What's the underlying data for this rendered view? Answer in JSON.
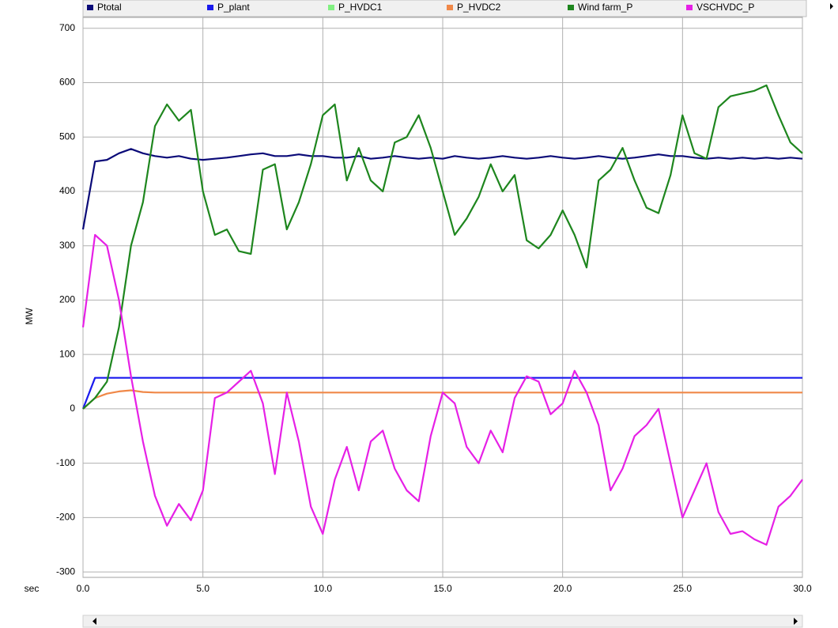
{
  "chart_data": {
    "type": "line",
    "x_label": "sec",
    "y_label": "MW",
    "xlim": [
      0,
      30
    ],
    "ylim": [
      -310,
      720
    ],
    "xticks": [
      {
        "value": 0,
        "label": "0.0"
      },
      {
        "value": 5,
        "label": "5.0"
      },
      {
        "value": 10,
        "label": "10.0"
      },
      {
        "value": 15,
        "label": "15.0"
      },
      {
        "value": 20,
        "label": "20.0"
      },
      {
        "value": 25,
        "label": "25.0"
      },
      {
        "value": 30,
        "label": "30.0"
      }
    ],
    "yticks": [
      -300,
      -200,
      -100,
      0,
      100,
      200,
      300,
      400,
      500,
      600,
      700
    ],
    "grid": true,
    "x": [
      0,
      0.5,
      1,
      1.5,
      2,
      2.5,
      3,
      3.5,
      4,
      4.5,
      5,
      5.5,
      6,
      6.5,
      7,
      7.5,
      8,
      8.5,
      9,
      9.5,
      10,
      10.5,
      11,
      11.5,
      12,
      12.5,
      13,
      13.5,
      14,
      14.5,
      15,
      15.5,
      16,
      16.5,
      17,
      17.5,
      18,
      18.5,
      19,
      19.5,
      20,
      20.5,
      21,
      21.5,
      22,
      22.5,
      23,
      23.5,
      24,
      24.5,
      25,
      25.5,
      26,
      26.5,
      27,
      27.5,
      28,
      28.5,
      29,
      29.5,
      30
    ],
    "series": [
      {
        "name": "Ptotal",
        "color": "#0a0a78",
        "values": [
          330,
          455,
          458,
          470,
          478,
          470,
          465,
          462,
          465,
          460,
          458,
          460,
          462,
          465,
          468,
          470,
          465,
          465,
          468,
          465,
          465,
          462,
          462,
          465,
          460,
          462,
          465,
          462,
          460,
          462,
          460,
          465,
          462,
          460,
          462,
          465,
          462,
          460,
          462,
          465,
          462,
          460,
          462,
          465,
          462,
          460,
          462,
          465,
          468,
          465,
          465,
          462,
          460,
          462,
          460,
          462,
          460,
          462,
          460,
          462,
          460
        ]
      },
      {
        "name": "P_plant",
        "color": "#1a1aee",
        "values": [
          0,
          57,
          57,
          57,
          57,
          57,
          57,
          57,
          57,
          57,
          57,
          57,
          57,
          57,
          57,
          57,
          57,
          57,
          57,
          57,
          57,
          57,
          57,
          57,
          57,
          57,
          57,
          57,
          57,
          57,
          57,
          57,
          57,
          57,
          57,
          57,
          57,
          57,
          57,
          57,
          57,
          57,
          57,
          57,
          57,
          57,
          57,
          57,
          57,
          57,
          57,
          57,
          57,
          57,
          57,
          57,
          57,
          57,
          57,
          57,
          57
        ]
      },
      {
        "name": "P_HVDC1",
        "color": "#80f080",
        "values": [
          null,
          null,
          null,
          null,
          null,
          null,
          null,
          null,
          null,
          null,
          null,
          null,
          null,
          null,
          null,
          null,
          null,
          null,
          null,
          null,
          null,
          null,
          null,
          null,
          null,
          null,
          null,
          null,
          null,
          null,
          null,
          null,
          null,
          null,
          null,
          null,
          null,
          null,
          null,
          null,
          null,
          null,
          null,
          null,
          null,
          null,
          null,
          null,
          null,
          null,
          null,
          null,
          null,
          null,
          null,
          null,
          null,
          null,
          null,
          null,
          null
        ]
      },
      {
        "name": "P_HVDC2",
        "color": "#f08848",
        "values": [
          0,
          20,
          28,
          32,
          34,
          31,
          30,
          30,
          30,
          30,
          30,
          30,
          30,
          30,
          30,
          30,
          30,
          30,
          30,
          30,
          30,
          30,
          30,
          30,
          30,
          30,
          30,
          30,
          30,
          30,
          30,
          30,
          30,
          30,
          30,
          30,
          30,
          30,
          30,
          30,
          30,
          30,
          30,
          30,
          30,
          30,
          30,
          30,
          30,
          30,
          30,
          30,
          30,
          30,
          30,
          30,
          30,
          30,
          30,
          30,
          30
        ]
      },
      {
        "name": "Wind farm_P",
        "color": "#1e861e",
        "values": [
          0,
          20,
          50,
          150,
          300,
          380,
          520,
          560,
          530,
          550,
          400,
          320,
          330,
          290,
          285,
          440,
          450,
          330,
          380,
          450,
          540,
          560,
          420,
          480,
          420,
          400,
          490,
          500,
          540,
          480,
          400,
          320,
          350,
          390,
          450,
          400,
          430,
          310,
          295,
          320,
          365,
          320,
          260,
          420,
          440,
          480,
          420,
          370,
          360,
          430,
          540,
          470,
          460,
          555,
          575,
          580,
          585,
          595,
          540,
          490,
          470
        ]
      },
      {
        "name": "VSCHVDC_P",
        "color": "#e620e6",
        "values": [
          150,
          320,
          300,
          200,
          60,
          -60,
          -160,
          -215,
          -175,
          -205,
          -150,
          20,
          30,
          50,
          70,
          10,
          -120,
          30,
          -60,
          -180,
          -230,
          -130,
          -70,
          -150,
          -60,
          -40,
          -110,
          -150,
          -170,
          -50,
          30,
          10,
          -70,
          -100,
          -40,
          -80,
          20,
          60,
          50,
          -10,
          10,
          70,
          30,
          -30,
          -150,
          -110,
          -50,
          -30,
          0,
          -100,
          -200,
          -150,
          -100,
          -190,
          -230,
          -225,
          -240,
          -250,
          -180,
          -160,
          -130
        ]
      }
    ]
  }
}
